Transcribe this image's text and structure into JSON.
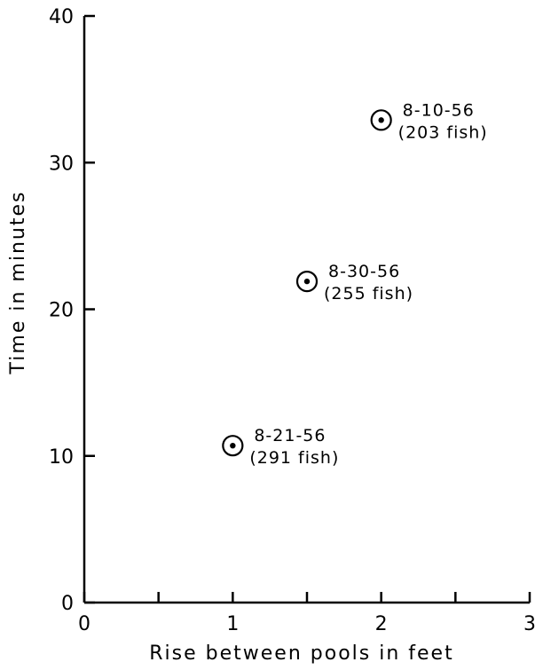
{
  "chart_data": {
    "type": "scatter",
    "title": "",
    "xlabel": "Rise between pools in feet",
    "ylabel": "Time in minutes",
    "xlim": [
      0,
      3
    ],
    "ylim": [
      0,
      40
    ],
    "x_ticks": [
      0,
      0.5,
      1,
      1.5,
      2,
      2.5,
      3
    ],
    "x_tick_labels": [
      "0",
      "",
      "1",
      "",
      "2",
      "",
      "3"
    ],
    "y_ticks": [
      0,
      10,
      20,
      30,
      40
    ],
    "y_tick_labels": [
      "0",
      "10",
      "20",
      "30",
      "40"
    ],
    "grid": false,
    "points": [
      {
        "x": 1.0,
        "y": 10.7,
        "label_date": "8-21-56",
        "label_count": "(291 fish)"
      },
      {
        "x": 1.5,
        "y": 21.9,
        "label_date": "8-30-56",
        "label_count": "(255 fish)"
      },
      {
        "x": 2.0,
        "y": 32.9,
        "label_date": "8-10-56",
        "label_count": "(203 fish)"
      }
    ]
  }
}
